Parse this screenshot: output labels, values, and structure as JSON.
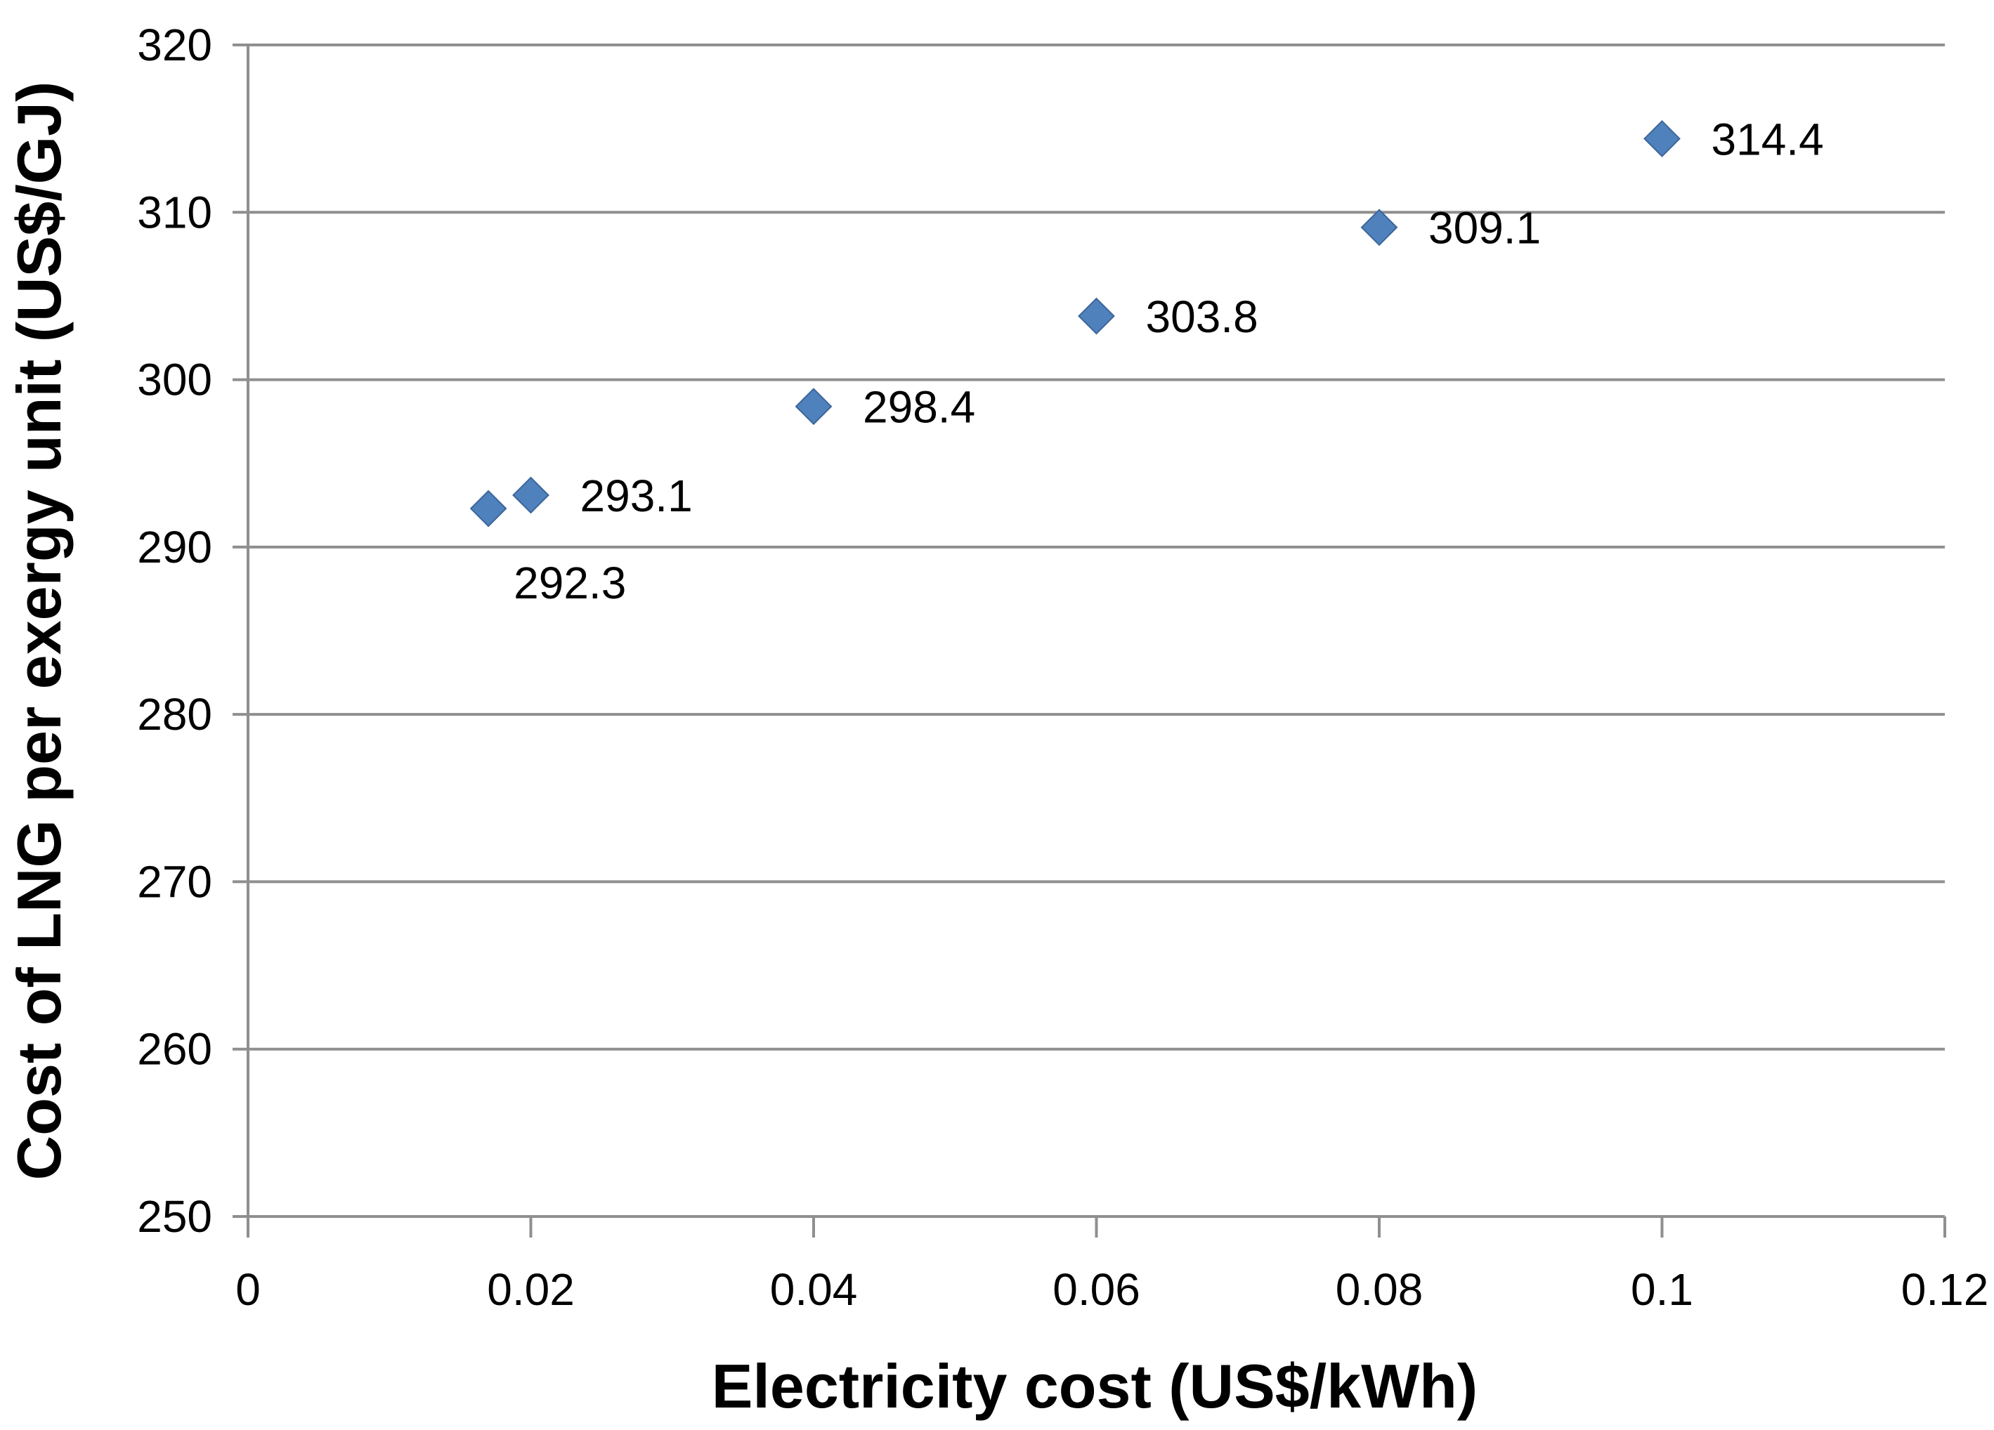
{
  "chart_data": {
    "type": "scatter",
    "title": "",
    "xlabel": "Electricity cost (US$/kWh)",
    "ylabel": "Cost of LNG per exergy unit (US$/GJ)",
    "xlim": [
      0,
      0.12
    ],
    "ylim": [
      250,
      320
    ],
    "grid": "horizontal",
    "legend": "none",
    "x_ticks": {
      "values": [
        0,
        0.02,
        0.04,
        0.06,
        0.08,
        0.1,
        0.12
      ],
      "labels": [
        "0",
        "0.02",
        "0.04",
        "0.06",
        "0.08",
        "0.1",
        "0.12"
      ]
    },
    "y_ticks": {
      "values": [
        250,
        260,
        270,
        280,
        290,
        300,
        310,
        320
      ],
      "labels": [
        "250",
        "260",
        "270",
        "280",
        "290",
        "300",
        "310",
        "320"
      ]
    },
    "series": [
      {
        "name": "Cost of LNG per exergy unit vs electricity cost",
        "marker": "diamond",
        "color": "#4F81BD",
        "points": [
          {
            "x": 0.017,
            "y": 292.3,
            "label": "292.3",
            "label_position": "below"
          },
          {
            "x": 0.02,
            "y": 293.1,
            "label": "293.1",
            "label_position": "right"
          },
          {
            "x": 0.04,
            "y": 298.4,
            "label": "298.4",
            "label_position": "right"
          },
          {
            "x": 0.06,
            "y": 303.8,
            "label": "303.8",
            "label_position": "right"
          },
          {
            "x": 0.08,
            "y": 309.1,
            "label": "309.1",
            "label_position": "right"
          },
          {
            "x": 0.1,
            "y": 314.4,
            "label": "314.4",
            "label_position": "right"
          }
        ]
      }
    ]
  },
  "colors": {
    "marker_fill": "#4F81BD",
    "marker_edge": "#3D6699",
    "gridline": "#8F8F8F",
    "text": "#000000",
    "background": "#FFFFFF"
  }
}
